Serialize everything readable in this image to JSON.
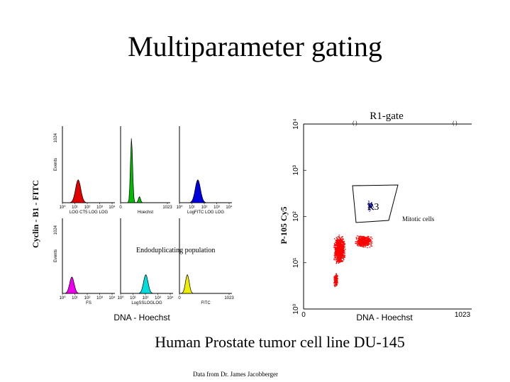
{
  "slide": {
    "title": "Multiparameter gating",
    "subtitle": "Human Prostate tumor cell line DU-145",
    "credit": "Data from Dr. James Jacobberger"
  },
  "left_panel": {
    "y_label": "Cyclin - B1 - FITC",
    "x_label": "DNA - Hoechst",
    "annotation": "Endoduplicating population",
    "histograms": [
      {
        "ymax": "1024",
        "ylabel": "Events",
        "xticks": [
          "10⁰",
          "10¹",
          "10²",
          "10³",
          "10⁴"
        ],
        "xlabel": "LOG CT5 LOG LOG",
        "color": "#e00000"
      },
      {
        "ymax": "",
        "ylabel": "",
        "xticks": [
          "0",
          "1023"
        ],
        "xlabel": "Hoechst",
        "color": "#00bb00"
      },
      {
        "ymax": "",
        "ylabel": "",
        "xticks": [
          "10⁰",
          "10¹",
          "10²",
          "10³",
          "10⁴"
        ],
        "xlabel": "LogFITC LOG LOG",
        "color": "#0000dd"
      },
      {
        "ymax": "1024",
        "ylabel": "Events",
        "xticks": [
          "10⁰",
          "10¹",
          "10²",
          "10³",
          "10⁴"
        ],
        "xlabel": "FS",
        "color": "#ee00ee"
      },
      {
        "ymax": "",
        "ylabel": "",
        "xticks": [
          "10⁰",
          "10¹",
          "10²",
          "10³",
          "10⁴"
        ],
        "xlabel": "LogSSLOGLOG",
        "color": "#00dddd"
      },
      {
        "ymax": "",
        "ylabel": "",
        "xticks": [
          "0",
          "1023"
        ],
        "xlabel": "FITC",
        "color": "#eeee00"
      }
    ]
  },
  "right_panel": {
    "gate_title": "R1-gate",
    "y_label": "P-105 Cy5",
    "x_label": "DNA - Hoechst",
    "yticks": [
      "10⁰",
      "10¹",
      "10²",
      "10³",
      "10⁴"
    ],
    "xticks": [
      "0",
      "1023"
    ],
    "region_label": "R3",
    "mitotic_label": "Mitotic cells",
    "main_color": "#ff0000",
    "region_color": "#0000cc"
  }
}
